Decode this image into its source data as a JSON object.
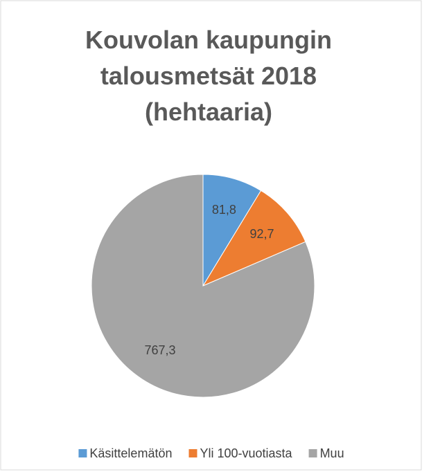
{
  "chart_data": {
    "type": "pie",
    "title": "Kouvolan kaupungin talousmetsät 2018 (hehtaaria)",
    "categories": [
      "Käsittelemätön",
      "Yli 100-vuotiasta",
      "Muu"
    ],
    "values": [
      81.8,
      92.7,
      767.3
    ],
    "value_labels": [
      "81,8",
      "92,7",
      "767,3"
    ],
    "colors": [
      "#5b9bd5",
      "#ed7d31",
      "#a5a5a5"
    ],
    "legend": "bottom"
  }
}
